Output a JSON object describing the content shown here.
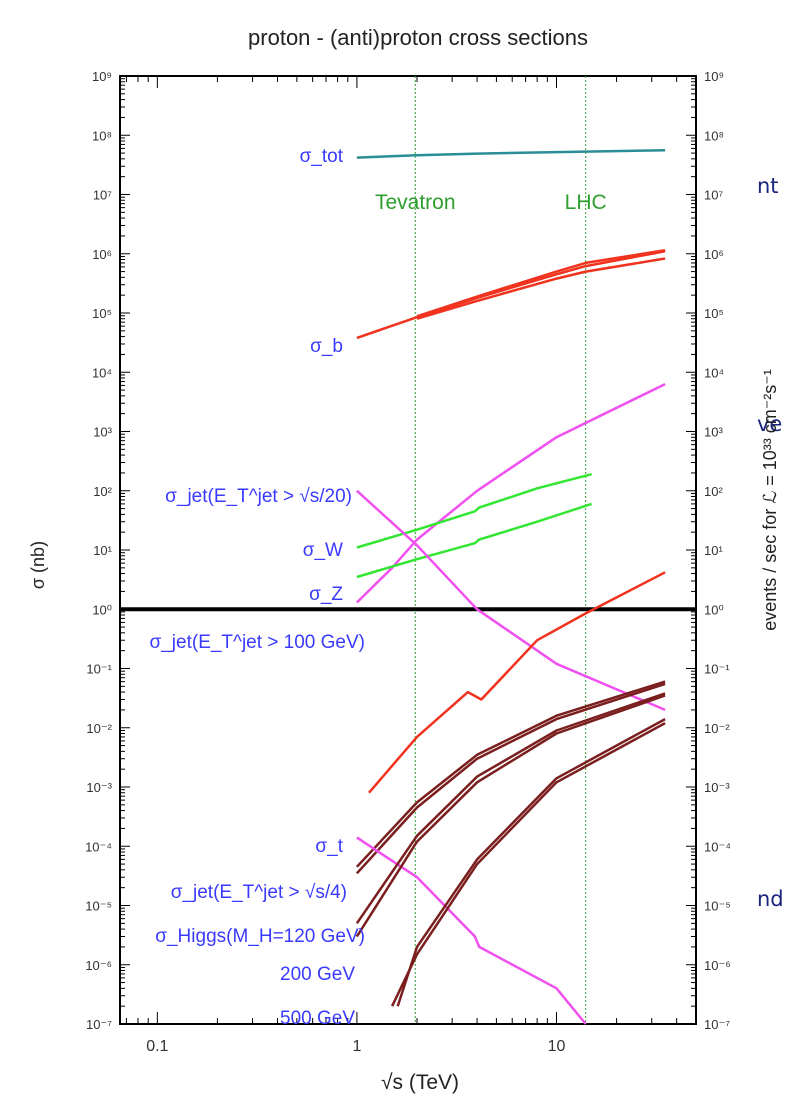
{
  "side_fragments": [
    "nt",
    "ve",
    "nd"
  ],
  "chart_data": {
    "type": "line",
    "title": "proton - (anti)proton cross sections",
    "xlabel": "√s (TeV)",
    "ylabel": "σ (nb)",
    "ylabel_right": "events / sec for ℒ = 10³³ cm⁻²s⁻¹",
    "x_scale": "log",
    "y_scale": "log",
    "xlim": [
      0.065,
      50
    ],
    "ylim": [
      1e-07,
      1000000000.0
    ],
    "y2lim": [
      1e-07,
      1000000000.0
    ],
    "x_ticklabels": [
      "0.1",
      "1",
      "10"
    ],
    "y_ticklabels": [
      "10⁻⁷",
      "10⁻⁶",
      "10⁻⁵",
      "10⁻⁴",
      "10⁻³",
      "10⁻²",
      "10⁻¹",
      "10⁰",
      "10¹",
      "10²",
      "10³",
      "10⁴",
      "10⁵",
      "10⁶",
      "10⁷",
      "10⁸",
      "10⁹"
    ],
    "reference_lines": [
      {
        "label": "Tevatron",
        "x": 1.96,
        "color": "#2e9e2e"
      },
      {
        "label": "LHC",
        "x": 14,
        "color": "#2e9e2e"
      }
    ],
    "threshold_line": {
      "y": 1,
      "color": "#000000"
    },
    "colors": {
      "tot": "#2a8e96",
      "red": "#f0321e",
      "green": "#32e632",
      "magenta": "#f050f0",
      "brown": "#7a1e1e",
      "label_blue": "#3a3aff"
    },
    "series": [
      {
        "label": "σ_tot",
        "color": "tot",
        "points": [
          [
            1,
            42000000.0
          ],
          [
            2,
            46000000.0
          ],
          [
            4,
            49000000.0
          ],
          [
            10,
            52000000.0
          ],
          [
            14,
            53000000.0
          ],
          [
            35,
            56000000.0
          ]
        ]
      },
      {
        "label": "σ_b",
        "color": "red",
        "points": [
          [
            1,
            38000.0
          ],
          [
            2,
            85000.0
          ],
          [
            4,
            180000.0
          ],
          [
            10,
            450000.0
          ],
          [
            14,
            620000.0
          ],
          [
            35,
            1100000.0
          ]
        ]
      },
      {
        "label": "",
        "color": "red",
        "points": [
          [
            2,
            80000.0
          ],
          [
            4,
            160000.0
          ],
          [
            10,
            380000.0
          ],
          [
            14,
            500000.0
          ],
          [
            35,
            830000.0
          ]
        ]
      },
      {
        "label": "",
        "color": "red",
        "points": [
          [
            2,
            88000.0
          ],
          [
            4,
            190000.0
          ],
          [
            10,
            500000.0
          ],
          [
            14,
            700000.0
          ],
          [
            35,
            1150000.0
          ]
        ]
      },
      {
        "label": "σ_jet(E_T^jet > √s/20)",
        "color": "magenta",
        "points": [
          [
            1,
            1.3
          ],
          [
            1.5,
            5
          ],
          [
            2,
            15
          ],
          [
            4,
            100
          ],
          [
            10,
            800
          ],
          [
            35,
            6300
          ]
        ]
      },
      {
        "label": "σ_W",
        "color": "green",
        "points": [
          [
            1,
            11
          ],
          [
            2,
            22
          ],
          [
            3.9,
            45
          ],
          [
            4.1,
            52
          ],
          [
            8,
            110
          ],
          [
            15,
            190
          ]
        ]
      },
      {
        "label": "σ_Z",
        "color": "green",
        "points": [
          [
            1,
            3.5
          ],
          [
            2,
            7
          ],
          [
            3.9,
            13
          ],
          [
            4.1,
            15
          ],
          [
            8,
            30
          ],
          [
            15,
            60
          ]
        ]
      },
      {
        "label": "σ_jet(E_T^jet > 100 GeV)",
        "color": "magenta",
        "points": [
          [
            1,
            100
          ],
          [
            2,
            12
          ],
          [
            4,
            1
          ],
          [
            10,
            0.12
          ],
          [
            35,
            0.02
          ]
        ]
      },
      {
        "label": "σ_t",
        "color": "red",
        "points": [
          [
            1.15,
            0.0008
          ],
          [
            2,
            0.007
          ],
          [
            3.6,
            0.04
          ],
          [
            4.2,
            0.03
          ],
          [
            8,
            0.3
          ],
          [
            14,
            0.85
          ],
          [
            35,
            4.2
          ]
        ]
      },
      {
        "label": "σ_jet(E_T^jet > √s/4)",
        "color": "brown",
        "points": [
          [
            1,
            3.5e-05
          ],
          [
            2,
            0.00045
          ],
          [
            4,
            0.003
          ],
          [
            10,
            0.014
          ],
          [
            35,
            0.055
          ]
        ]
      },
      {
        "label": "",
        "color": "brown",
        "points": [
          [
            1,
            4.5e-05
          ],
          [
            2,
            0.00055
          ],
          [
            4,
            0.0035
          ],
          [
            10,
            0.016
          ],
          [
            35,
            0.06
          ]
        ]
      },
      {
        "label": "σ_Higgs(M_H=120 GeV)",
        "color": "magenta",
        "points": [
          [
            1,
            0.00014
          ],
          [
            2,
            3e-05
          ],
          [
            3.9,
            3e-06
          ],
          [
            4.1,
            2e-06
          ],
          [
            10,
            4e-07
          ],
          [
            14,
            1e-07
          ]
        ]
      },
      {
        "label": "200 GeV",
        "color": "brown",
        "points": [
          [
            1,
            3e-06
          ],
          [
            2,
            0.00012
          ],
          [
            4,
            0.0012
          ],
          [
            10,
            0.008
          ],
          [
            35,
            0.035
          ]
        ]
      },
      {
        "label": "",
        "color": "brown",
        "points": [
          [
            1,
            5e-06
          ],
          [
            2,
            0.00015
          ],
          [
            4,
            0.0015
          ],
          [
            10,
            0.009
          ],
          [
            35,
            0.038
          ]
        ]
      },
      {
        "label": "500 GeV",
        "color": "brown",
        "points": [
          [
            1.5,
            2e-07
          ],
          [
            2,
            1.5e-06
          ],
          [
            4,
            5e-05
          ],
          [
            10,
            0.0012
          ],
          [
            35,
            0.012
          ]
        ]
      },
      {
        "label": "",
        "color": "brown",
        "points": [
          [
            1.6,
            2e-07
          ],
          [
            2,
            2e-06
          ],
          [
            4,
            6e-05
          ],
          [
            10,
            0.0014
          ],
          [
            35,
            0.014
          ]
        ]
      }
    ]
  }
}
